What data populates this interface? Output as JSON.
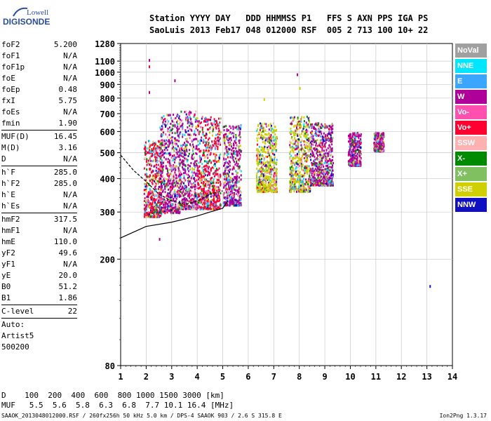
{
  "logo": {
    "line1": "Lowell",
    "line2": "DIGISONDE"
  },
  "header": {
    "labels": "Station YYYY DAY   DDD HHMMSS P1   FFS S AXN PPS IGA PS",
    "values": "SaoLuis 2013 Feb17 048 012000 RSF  005 2 713 100 10+ 22"
  },
  "params": {
    "group1": [
      {
        "label": "foF2",
        "value": "5.200"
      },
      {
        "label": "foF1",
        "value": "N/A"
      },
      {
        "label": "foF1p",
        "value": "N/A"
      },
      {
        "label": "foE",
        "value": "N/A"
      },
      {
        "label": "foEp",
        "value": "0.48"
      },
      {
        "label": "fxI",
        "value": "5.75"
      },
      {
        "label": "foEs",
        "value": "N/A"
      },
      {
        "label": "fmin",
        "value": "1.90"
      }
    ],
    "group2": [
      {
        "label": "MUF(D)",
        "value": "16.45"
      },
      {
        "label": "M(D)",
        "value": "3.16"
      },
      {
        "label": "D",
        "value": "N/A"
      }
    ],
    "group3": [
      {
        "label": "h`F",
        "value": "285.0"
      },
      {
        "label": "h`F2",
        "value": "285.0"
      },
      {
        "label": "h`E",
        "value": "N/A"
      },
      {
        "label": "h`Es",
        "value": "N/A"
      }
    ],
    "group4": [
      {
        "label": "hmF2",
        "value": "317.5"
      },
      {
        "label": "hmF1",
        "value": "N/A"
      },
      {
        "label": "hmE",
        "value": "110.0"
      },
      {
        "label": "yF2",
        "value": "49.6"
      },
      {
        "label": "yF1",
        "value": "N/A"
      },
      {
        "label": "yE",
        "value": "20.0"
      },
      {
        "label": "B0",
        "value": "51.2"
      },
      {
        "label": "B1",
        "value": "1.86"
      }
    ],
    "clevel": {
      "label": "C-level",
      "value": "22"
    },
    "notes": [
      "Auto:",
      "Artist5",
      "500200"
    ]
  },
  "legend": [
    {
      "label": "NoVal",
      "color": "#a0a0a0"
    },
    {
      "label": "NNE",
      "color": "#00e6ff"
    },
    {
      "label": "E",
      "color": "#3aa6ff"
    },
    {
      "label": "W",
      "color": "#b0009a"
    },
    {
      "label": "Vo-",
      "color": "#ff50b0"
    },
    {
      "label": "Vo+",
      "color": "#ff0030"
    },
    {
      "label": "SSW",
      "color": "#ffb0b0"
    },
    {
      "label": "X-",
      "color": "#008a00"
    },
    {
      "label": "X+",
      "color": "#80c060"
    },
    {
      "label": "SSE",
      "color": "#d0d000"
    },
    {
      "label": "NNW",
      "color": "#1010c0"
    }
  ],
  "chart_data": {
    "type": "scatter",
    "title": "",
    "xlabel": "",
    "ylabel": "",
    "xlim": [
      1,
      14
    ],
    "ylim": [
      80,
      1280
    ],
    "x_scale": "linear",
    "y_scale": "log",
    "xticks": [
      "1",
      "2",
      "3",
      "4",
      "5",
      "6",
      "7",
      "8",
      "9",
      "10",
      "11",
      "12",
      "13",
      "14"
    ],
    "yticks": [
      "80",
      "200",
      "300",
      "400",
      "500",
      "600",
      "700",
      "800",
      "900",
      "1000",
      "1100",
      "1280"
    ],
    "grid": true,
    "band_clusters": [
      {
        "x_range": [
          1.9,
          2.6
        ],
        "y_range": [
          290,
          560
        ],
        "dominant": "Vo+"
      },
      {
        "x_range": [
          2.5,
          3.3
        ],
        "y_range": [
          300,
          700
        ],
        "dominant": "W"
      },
      {
        "x_range": [
          3.3,
          4.0
        ],
        "y_range": [
          310,
          720
        ],
        "dominant": "W"
      },
      {
        "x_range": [
          4.0,
          4.9
        ],
        "y_range": [
          310,
          690
        ],
        "dominant": "Vo+"
      },
      {
        "x_range": [
          5.0,
          5.7
        ],
        "y_range": [
          320,
          640
        ],
        "dominant": "W"
      },
      {
        "x_range": [
          6.3,
          7.1
        ],
        "y_range": [
          360,
          650
        ],
        "dominant": "SSE"
      },
      {
        "x_range": [
          7.6,
          8.4
        ],
        "y_range": [
          360,
          690
        ],
        "dominant": "SSE"
      },
      {
        "x_range": [
          8.4,
          9.3
        ],
        "y_range": [
          380,
          650
        ],
        "dominant": "W"
      },
      {
        "x_range": [
          9.9,
          10.4
        ],
        "y_range": [
          450,
          600
        ],
        "dominant": "W"
      },
      {
        "x_range": [
          10.9,
          11.3
        ],
        "y_range": [
          510,
          600
        ],
        "dominant": "W"
      }
    ],
    "trace_lower": {
      "x": [
        1,
        2,
        3,
        4,
        4.5,
        5,
        5.2
      ],
      "y": [
        240,
        265,
        275,
        290,
        300,
        310,
        330
      ]
    },
    "trace_upper": {
      "x": [
        1,
        1.5,
        2,
        2.5,
        3,
        3.5,
        4,
        4.5,
        5
      ],
      "y": [
        490,
        430,
        390,
        350,
        330,
        320,
        330,
        350,
        360
      ]
    },
    "isolated_points": [
      {
        "x": 2.1,
        "y": 1120,
        "color": "W"
      },
      {
        "x": 2.1,
        "y": 1060,
        "color": "Vo+"
      },
      {
        "x": 2.1,
        "y": 850,
        "color": "W"
      },
      {
        "x": 3.1,
        "y": 940,
        "color": "W"
      },
      {
        "x": 7.9,
        "y": 990,
        "color": "W"
      },
      {
        "x": 8.0,
        "y": 880,
        "color": "SSE"
      },
      {
        "x": 6.6,
        "y": 800,
        "color": "SSE"
      },
      {
        "x": 13.1,
        "y": 160,
        "color": "NNW"
      },
      {
        "x": 2.5,
        "y": 240,
        "color": "W"
      }
    ]
  },
  "conversion": {
    "row1": "D    100  200  400  600  800 1000 1500 3000 [km]",
    "row2": "MUF   5.5  5.6  5.8  6.3  6.8  7.7 10.1 16.4 [MHz]"
  },
  "footer": {
    "left": "SAAOK_2013048012000.RSF / 260fx256h 50 kHz 5.0 km / DPS-4 SAAOK 903 / 2.6 S 315.8 E",
    "right": "Ion2Png 1.3.17"
  }
}
